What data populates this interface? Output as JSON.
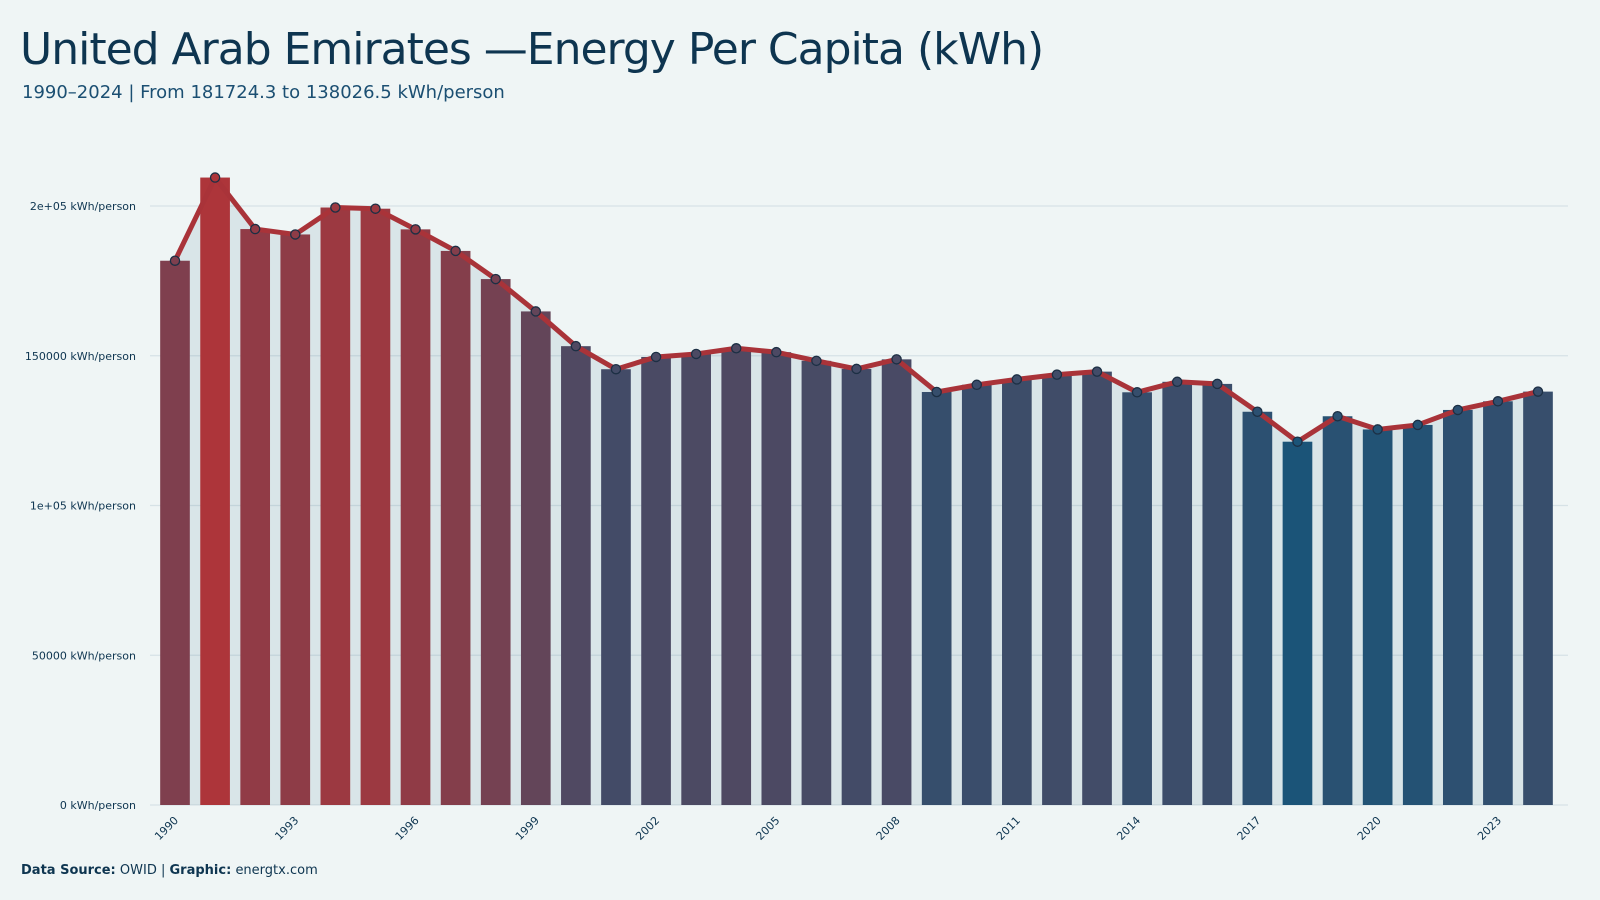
{
  "title": "United Arab Emirates —Energy Per Capita (kWh)",
  "subtitle": "1990–2024 | From 181724.3 to 138026.5 kWh/person",
  "caption": {
    "source_label": "Data Source:",
    "source_value": "OWID",
    "separator": "|",
    "graphic_label": "Graphic:",
    "graphic_value": "energtx.com"
  },
  "colors": {
    "background": "#eff5f5",
    "line": "#a93339",
    "high": "#ad353a",
    "low": "#1b5478",
    "marker_stroke": "#1c2f44",
    "grid": "#d6e2e6"
  },
  "chart_data": {
    "type": "bar",
    "overlay": "line",
    "x": [
      1990,
      1991,
      1992,
      1993,
      1994,
      1995,
      1996,
      1997,
      1998,
      1999,
      2000,
      2001,
      2002,
      2003,
      2004,
      2005,
      2006,
      2007,
      2008,
      2009,
      2010,
      2011,
      2012,
      2013,
      2014,
      2015,
      2016,
      2017,
      2018,
      2019,
      2020,
      2021,
      2022,
      2023,
      2024
    ],
    "values": [
      181724.3,
      209500,
      192300,
      190500,
      199500,
      199100,
      192200,
      185000,
      175600,
      164800,
      153200,
      145500,
      149600,
      150600,
      152500,
      151200,
      148300,
      145600,
      148800,
      137900,
      140300,
      142100,
      143700,
      144700,
      137800,
      141300,
      140600,
      131300,
      121300,
      129800,
      125400,
      126900,
      131900,
      134800,
      138026.5
    ],
    "x_tick_labels": [
      "1990",
      "1993",
      "1996",
      "1999",
      "2002",
      "2005",
      "2008",
      "2011",
      "2014",
      "2017",
      "2020",
      "2023"
    ],
    "y_ticks": [
      0,
      50000,
      100000,
      150000,
      200000
    ],
    "y_tick_labels": [
      "0 kWh/person",
      "50000 kWh/person",
      "1e+05 kWh/person",
      "150000 kWh/person",
      "2e+05 kWh/person"
    ],
    "ylim": [
      0,
      200000
    ],
    "grid": true,
    "legend": "none"
  }
}
